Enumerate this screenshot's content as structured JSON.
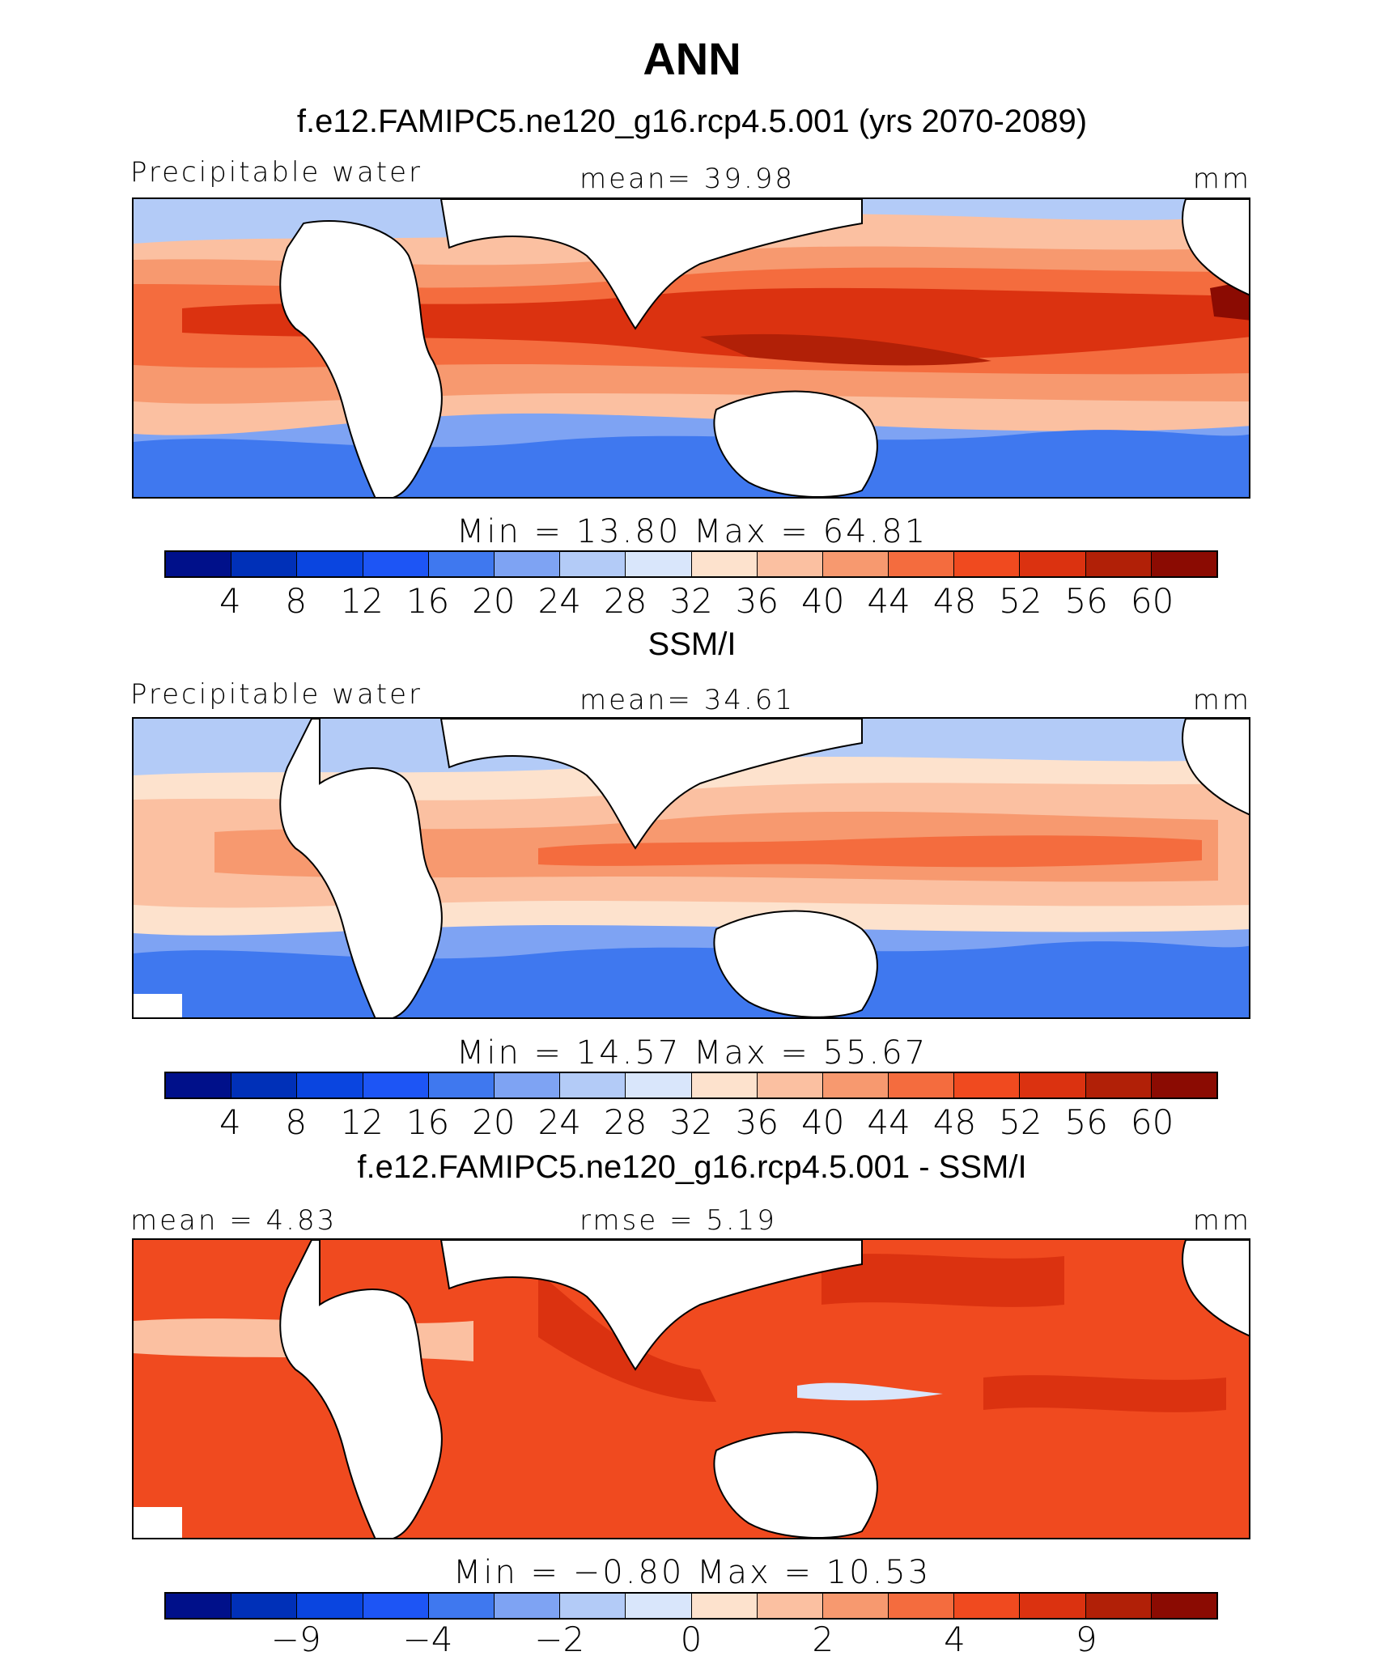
{
  "title": "ANN",
  "units": "mm",
  "colors": {
    "abs_palette": [
      "#00108a",
      "#0030b8",
      "#0a45e0",
      "#1d55f5",
      "#3f78ef",
      "#7ea3f3",
      "#b3cbf7",
      "#d9e6fb",
      "#fde2cd",
      "#fbc0a1",
      "#f7996f",
      "#f46c3e",
      "#f04a1f",
      "#db3210",
      "#b12007",
      "#8b0b02"
    ],
    "diff_palette": [
      "#00108a",
      "#0030b8",
      "#0a45e0",
      "#1d55f5",
      "#3f78ef",
      "#7ea3f3",
      "#b3cbf7",
      "#d9e6fb",
      "#fde2cd",
      "#fbc0a1",
      "#f7996f",
      "#f46c3e",
      "#f04a1f",
      "#db3210",
      "#b12007",
      "#8b0b02"
    ]
  },
  "panels": [
    {
      "title": "f.e12.FAMIPC5.ne120_g16.rcp4.5.001 (yrs 2070-2089)",
      "left_label": "Precipitable water",
      "center_label": "mean=   39.98",
      "right_label": "mm",
      "minmax": "Min  =   13.80  Max  =   64.81",
      "colorbar_labels": [
        "4",
        "8",
        "12",
        "16",
        "20",
        "24",
        "28",
        "32",
        "36",
        "40",
        "44",
        "48",
        "52",
        "56",
        "60"
      ]
    },
    {
      "title": "SSM/I",
      "left_label": "Precipitable water",
      "center_label": "mean=   34.61",
      "right_label": "mm",
      "minmax": "Min  =   14.57  Max  =   55.67",
      "colorbar_labels": [
        "4",
        "8",
        "12",
        "16",
        "20",
        "24",
        "28",
        "32",
        "36",
        "40",
        "44",
        "48",
        "52",
        "56",
        "60"
      ]
    },
    {
      "title": "f.e12.FAMIPC5.ne120_g16.rcp4.5.001 - SSM/I",
      "left_label": "mean =    4.83",
      "center_label": "rmse =    5.19",
      "right_label": "mm",
      "minmax": "Min  =  −0.80  Max  =   10.53",
      "colorbar_labels": [
        "−9",
        "−4",
        "−2",
        "0",
        "2",
        "4",
        "9"
      ]
    }
  ]
}
